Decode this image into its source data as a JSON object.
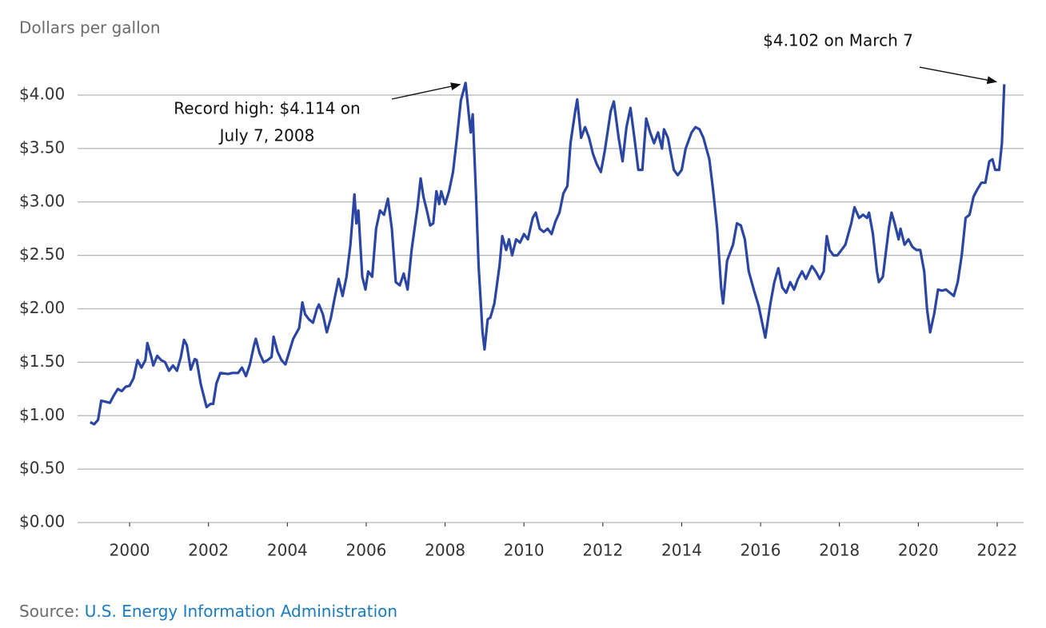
{
  "chart_data": {
    "type": "line",
    "subtitle": "Dollars per gallon",
    "source": {
      "label": "Source:",
      "text": "U.S. Energy Information Administration"
    },
    "annotations": [
      {
        "lines": [
          "Record high: $4.114 on",
          "July 7, 2008"
        ],
        "x": 2008.52,
        "y": 4.114
      },
      {
        "lines": [
          "$4.102 on March 7"
        ],
        "x": 2022.18,
        "y": 4.102
      }
    ],
    "color": "#2b45a3",
    "xlim": [
      1998.68,
      2022.67
    ],
    "xticks": [
      2000,
      2002,
      2004,
      2006,
      2008,
      2010,
      2012,
      2014,
      2016,
      2018,
      2020,
      2022
    ],
    "ylim": [
      0,
      4.0
    ],
    "yticks": [
      {
        "value": 0,
        "label": "$0.00"
      },
      {
        "value": 0.5,
        "label": "$0.50"
      },
      {
        "value": 1,
        "label": "$1.00"
      },
      {
        "value": 1.5,
        "label": "$1.50"
      },
      {
        "value": 2,
        "label": "$2.00"
      },
      {
        "value": 2.5,
        "label": "$2.50"
      },
      {
        "value": 3,
        "label": "$3.00"
      },
      {
        "value": 3.5,
        "label": "$3.50"
      },
      {
        "value": 4,
        "label": "$4.00"
      }
    ],
    "grid": true,
    "x": [
      1999.0,
      1999.1,
      1999.2,
      1999.28,
      1999.4,
      1999.5,
      1999.6,
      1999.7,
      1999.8,
      1999.9,
      2000.0,
      2000.1,
      2000.2,
      2000.3,
      2000.4,
      2000.45,
      2000.55,
      2000.6,
      2000.7,
      2000.8,
      2000.9,
      2001.0,
      2001.1,
      2001.2,
      2001.3,
      2001.38,
      2001.45,
      2001.55,
      2001.65,
      2001.7,
      2001.8,
      2001.95,
      2002.05,
      2002.12,
      2002.2,
      2002.3,
      2002.5,
      2002.6,
      2002.75,
      2002.85,
      2002.95,
      2003.05,
      2003.15,
      2003.2,
      2003.3,
      2003.4,
      2003.5,
      2003.6,
      2003.65,
      2003.75,
      2003.85,
      2003.95,
      2004.05,
      2004.15,
      2004.3,
      2004.38,
      2004.45,
      2004.55,
      2004.65,
      2004.75,
      2004.8,
      2004.9,
      2005.0,
      2005.1,
      2005.2,
      2005.3,
      2005.4,
      2005.5,
      2005.6,
      2005.7,
      2005.75,
      2005.8,
      2005.9,
      2005.98,
      2006.05,
      2006.15,
      2006.25,
      2006.35,
      2006.45,
      2006.55,
      2006.65,
      2006.75,
      2006.85,
      2006.95,
      2007.05,
      2007.15,
      2007.3,
      2007.38,
      2007.45,
      2007.55,
      2007.62,
      2007.7,
      2007.78,
      2007.85,
      2007.9,
      2008.0,
      2008.1,
      2008.2,
      2008.3,
      2008.4,
      2008.52,
      2008.6,
      2008.65,
      2008.7,
      2008.78,
      2008.85,
      2008.95,
      2009.0,
      2009.08,
      2009.15,
      2009.25,
      2009.38,
      2009.45,
      2009.55,
      2009.62,
      2009.7,
      2009.8,
      2009.9,
      2010.0,
      2010.1,
      2010.22,
      2010.3,
      2010.4,
      2010.5,
      2010.6,
      2010.7,
      2010.8,
      2010.9,
      2011.0,
      2011.1,
      2011.18,
      2011.3,
      2011.35,
      2011.45,
      2011.55,
      2011.65,
      2011.75,
      2011.85,
      2011.95,
      2012.05,
      2012.2,
      2012.28,
      2012.4,
      2012.5,
      2012.6,
      2012.7,
      2012.8,
      2012.9,
      2013.0,
      2013.1,
      2013.2,
      2013.3,
      2013.4,
      2013.5,
      2013.55,
      2013.65,
      2013.8,
      2013.9,
      2014.0,
      2014.1,
      2014.25,
      2014.35,
      2014.45,
      2014.55,
      2014.7,
      2014.8,
      2014.9,
      2015.0,
      2015.05,
      2015.15,
      2015.3,
      2015.4,
      2015.5,
      2015.6,
      2015.7,
      2015.85,
      2015.95,
      2016.05,
      2016.12,
      2016.25,
      2016.35,
      2016.45,
      2016.55,
      2016.65,
      2016.75,
      2016.85,
      2016.95,
      2017.05,
      2017.15,
      2017.3,
      2017.4,
      2017.5,
      2017.6,
      2017.68,
      2017.75,
      2017.85,
      2017.95,
      2018.05,
      2018.15,
      2018.3,
      2018.38,
      2018.5,
      2018.6,
      2018.7,
      2018.75,
      2018.85,
      2018.95,
      2019.0,
      2019.1,
      2019.25,
      2019.32,
      2019.4,
      2019.5,
      2019.55,
      2019.65,
      2019.75,
      2019.85,
      2019.95,
      2020.05,
      2020.15,
      2020.22,
      2020.3,
      2020.4,
      2020.5,
      2020.6,
      2020.7,
      2020.8,
      2020.9,
      2021.0,
      2021.1,
      2021.2,
      2021.3,
      2021.4,
      2021.5,
      2021.6,
      2021.7,
      2021.8,
      2021.88,
      2021.95,
      2022.05,
      2022.12,
      2022.18
    ],
    "values": [
      0.94,
      0.92,
      0.96,
      1.14,
      1.13,
      1.12,
      1.19,
      1.25,
      1.23,
      1.27,
      1.28,
      1.35,
      1.52,
      1.45,
      1.52,
      1.68,
      1.55,
      1.47,
      1.56,
      1.52,
      1.5,
      1.42,
      1.47,
      1.42,
      1.55,
      1.71,
      1.66,
      1.43,
      1.53,
      1.52,
      1.3,
      1.08,
      1.11,
      1.11,
      1.3,
      1.4,
      1.39,
      1.4,
      1.4,
      1.45,
      1.37,
      1.48,
      1.65,
      1.72,
      1.58,
      1.5,
      1.52,
      1.55,
      1.74,
      1.6,
      1.52,
      1.48,
      1.6,
      1.72,
      1.82,
      2.06,
      1.95,
      1.9,
      1.87,
      2.0,
      2.04,
      1.95,
      1.78,
      1.91,
      2.1,
      2.28,
      2.12,
      2.3,
      2.6,
      3.07,
      2.8,
      2.92,
      2.3,
      2.18,
      2.35,
      2.3,
      2.75,
      2.92,
      2.88,
      3.03,
      2.75,
      2.25,
      2.22,
      2.33,
      2.18,
      2.55,
      2.95,
      3.22,
      3.05,
      2.9,
      2.78,
      2.8,
      3.1,
      2.98,
      3.1,
      2.98,
      3.1,
      3.28,
      3.6,
      3.95,
      4.114,
      3.82,
      3.65,
      3.82,
      3.1,
      2.4,
      1.78,
      1.62,
      1.9,
      1.92,
      2.05,
      2.4,
      2.68,
      2.55,
      2.65,
      2.5,
      2.65,
      2.62,
      2.7,
      2.65,
      2.85,
      2.9,
      2.75,
      2.72,
      2.75,
      2.7,
      2.82,
      2.9,
      3.08,
      3.15,
      3.55,
      3.85,
      3.96,
      3.6,
      3.7,
      3.6,
      3.45,
      3.35,
      3.28,
      3.48,
      3.85,
      3.94,
      3.6,
      3.38,
      3.7,
      3.88,
      3.6,
      3.3,
      3.3,
      3.78,
      3.65,
      3.55,
      3.65,
      3.5,
      3.68,
      3.6,
      3.3,
      3.25,
      3.3,
      3.5,
      3.65,
      3.7,
      3.68,
      3.6,
      3.4,
      3.1,
      2.75,
      2.2,
      2.05,
      2.45,
      2.6,
      2.8,
      2.78,
      2.65,
      2.35,
      2.15,
      2.03,
      1.85,
      1.73,
      2.05,
      2.25,
      2.38,
      2.2,
      2.15,
      2.25,
      2.18,
      2.28,
      2.35,
      2.28,
      2.4,
      2.35,
      2.28,
      2.35,
      2.68,
      2.55,
      2.5,
      2.5,
      2.55,
      2.6,
      2.8,
      2.95,
      2.85,
      2.88,
      2.85,
      2.9,
      2.7,
      2.35,
      2.25,
      2.3,
      2.75,
      2.9,
      2.8,
      2.65,
      2.75,
      2.6,
      2.65,
      2.58,
      2.55,
      2.55,
      2.35,
      2.0,
      1.78,
      1.95,
      2.18,
      2.17,
      2.18,
      2.15,
      2.12,
      2.25,
      2.5,
      2.85,
      2.88,
      3.05,
      3.12,
      3.18,
      3.18,
      3.38,
      3.4,
      3.3,
      3.3,
      3.55,
      4.102
    ]
  }
}
